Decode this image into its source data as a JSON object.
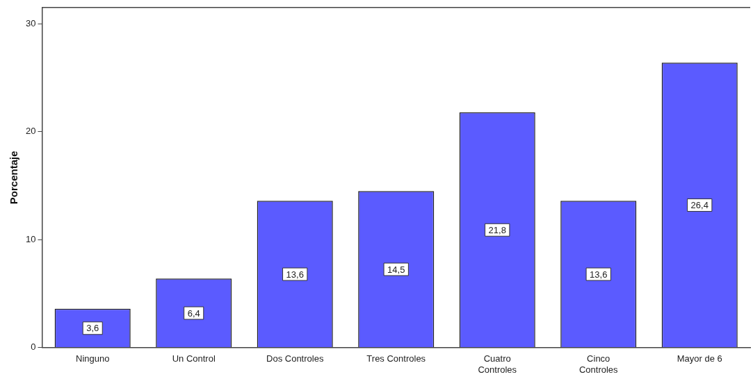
{
  "chart_data": {
    "type": "bar",
    "ylabel": "Porcentaje",
    "categories": [
      "Ninguno",
      "Un Control",
      "Dos Controles",
      "Tres Controles",
      "Cuatro\nControles",
      "Cinco\nControles",
      "Mayor de 6"
    ],
    "values": [
      3.6,
      6.4,
      13.6,
      14.5,
      21.8,
      13.6,
      26.4
    ],
    "value_labels": [
      "3,6",
      "6,4",
      "13,6",
      "14,5",
      "21,8",
      "13,6",
      "26,4"
    ],
    "color": "#5b5bff",
    "ylim": [
      0,
      31.5
    ],
    "yticks": [
      0,
      10,
      20,
      30
    ],
    "grid": false,
    "legend": false
  }
}
